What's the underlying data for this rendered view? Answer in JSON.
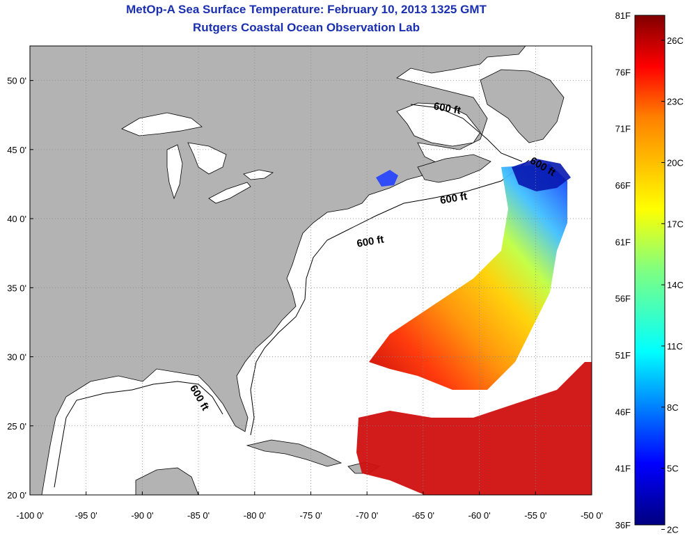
{
  "title": {
    "line1": "MetOp-A Sea Surface Temperature:  February 10, 2013 1325 GMT",
    "line2": "Rutgers Coastal Ocean Observation Lab"
  },
  "map": {
    "lon_range": [
      -100,
      -50
    ],
    "lat_range": [
      20,
      52.5
    ],
    "lon_ticks": [
      "-100 0'",
      "-95 0'",
      "-90 0'",
      "-85 0'",
      "-80 0'",
      "-75 0'",
      "-70 0'",
      "-65 0'",
      "-60 0'",
      "-55 0'",
      "-50 0'"
    ],
    "lat_ticks": [
      "50 0'",
      "45 0'",
      "40 0'",
      "35 0'",
      "30 0'",
      "25 0'",
      "20 0'"
    ],
    "grid": "dotted",
    "land_color": "#b3b3b3",
    "ocean_color": "#ffffff",
    "contour_label": "600 ft"
  },
  "colorbar": {
    "fahrenheit_labels": [
      "81F",
      "76F",
      "71F",
      "66F",
      "61F",
      "56F",
      "51F",
      "46F",
      "41F",
      "36F"
    ],
    "celsius_labels": [
      "26C",
      "23C",
      "20C",
      "17C",
      "14C",
      "11C",
      "8C",
      "5C",
      "2C"
    ],
    "colors": [
      "#800000",
      "#ff0000",
      "#ff8000",
      "#ffff00",
      "#80ff80",
      "#00ffff",
      "#0080ff",
      "#0000ff",
      "#000080"
    ]
  }
}
